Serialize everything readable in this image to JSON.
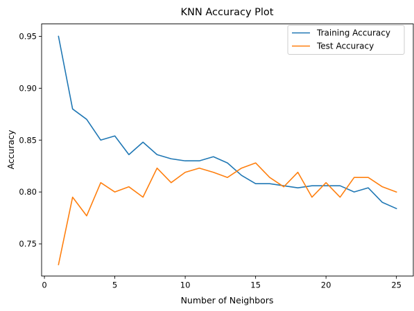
{
  "chart_data": {
    "type": "line",
    "title": "KNN Accuracy Plot",
    "xlabel": "Number of Neighbors",
    "ylabel": "Accuracy",
    "xlim": [
      -0.2,
      26.2
    ],
    "ylim": [
      0.719,
      0.962
    ],
    "xticks": [
      0,
      5,
      10,
      15,
      20,
      25
    ],
    "yticks": [
      0.75,
      0.8,
      0.85,
      0.9,
      0.95
    ],
    "grid": false,
    "legend_position": "top-right",
    "x": [
      1,
      2,
      3,
      4,
      5,
      6,
      7,
      8,
      9,
      10,
      11,
      12,
      13,
      14,
      15,
      16,
      17,
      18,
      19,
      20,
      21,
      22,
      23,
      24,
      25
    ],
    "series": [
      {
        "name": "Training Accuracy",
        "color": "#1f77b4",
        "values": [
          0.95,
          0.88,
          0.87,
          0.85,
          0.854,
          0.836,
          0.848,
          0.836,
          0.832,
          0.83,
          0.83,
          0.834,
          0.828,
          0.816,
          0.808,
          0.808,
          0.806,
          0.804,
          0.806,
          0.806,
          0.806,
          0.8,
          0.804,
          0.79,
          0.784
        ]
      },
      {
        "name": "Test Accuracy",
        "color": "#ff7f0e",
        "values": [
          0.73,
          0.795,
          0.777,
          0.809,
          0.8,
          0.805,
          0.795,
          0.823,
          0.809,
          0.819,
          0.823,
          0.819,
          0.814,
          0.823,
          0.828,
          0.814,
          0.805,
          0.819,
          0.795,
          0.809,
          0.795,
          0.814,
          0.814,
          0.805,
          0.8
        ]
      }
    ]
  }
}
